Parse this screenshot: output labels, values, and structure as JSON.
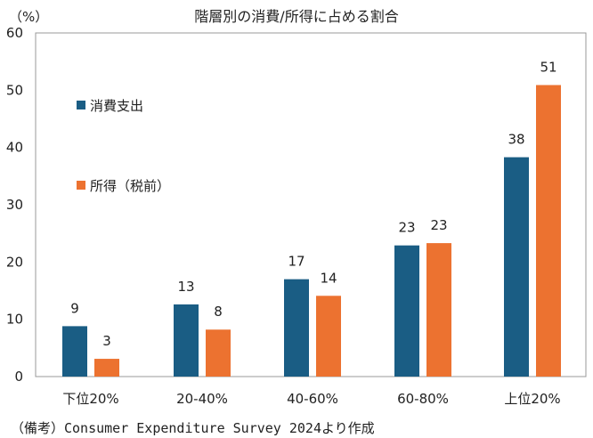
{
  "chart_data": {
    "type": "bar",
    "title": "階層別の消費/所得に占める割合",
    "unit_label": "（%）",
    "categories": [
      "下位20%",
      "20-40%",
      "40-60%",
      "60-80%",
      "上位20%"
    ],
    "series": [
      {
        "name": "消費支出",
        "color": "#1a5d84",
        "values": [
          9,
          13,
          17,
          23,
          38
        ],
        "labels": [
          "9",
          "13",
          "17",
          "23",
          "38"
        ],
        "plot_values": [
          8.8,
          12.6,
          17.0,
          22.9,
          38.3
        ]
      },
      {
        "name": "所得（税前）",
        "color": "#ec7230",
        "values": [
          3,
          8,
          14,
          23,
          51
        ],
        "labels": [
          "3",
          "8",
          "14",
          "23",
          "51"
        ],
        "plot_values": [
          3.1,
          8.2,
          14.1,
          23.3,
          50.9
        ]
      }
    ],
    "ylim": [
      0,
      60
    ],
    "yticks": [
      "0",
      "10",
      "20",
      "30",
      "40",
      "50",
      "60"
    ],
    "legend_position": "upper-left inside plot",
    "grid": false
  },
  "footnote": "（備考）Consumer Expenditure Survey 2024より作成"
}
